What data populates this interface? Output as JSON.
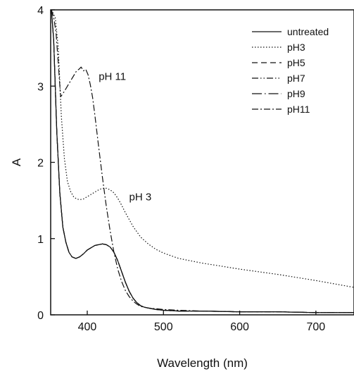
{
  "chart_data": {
    "type": "line",
    "xlabel": "Wavelength (nm)",
    "ylabel": "A",
    "xlim": [
      352,
      750
    ],
    "ylim": [
      0,
      4
    ],
    "x_ticks": [
      400,
      500,
      600,
      700
    ],
    "y_ticks": [
      0,
      1,
      2,
      3,
      4
    ],
    "grid": false,
    "legend_position": "top-right",
    "annotations": [
      {
        "text": "pH 11",
        "x": 415,
        "y": 3.08
      },
      {
        "text": "pH 3",
        "x": 455,
        "y": 1.5
      }
    ],
    "series": [
      {
        "name": "untreated",
        "dash": "",
        "x": [
          353,
          356,
          360,
          364,
          368,
          372,
          376,
          380,
          385,
          390,
          395,
          400,
          405,
          410,
          415,
          420,
          425,
          430,
          435,
          440,
          445,
          450,
          455,
          460,
          465,
          470,
          475,
          480,
          490,
          500,
          520,
          550,
          600,
          650,
          700,
          750
        ],
        "y": [
          4.0,
          3.6,
          2.4,
          1.6,
          1.15,
          0.95,
          0.82,
          0.76,
          0.74,
          0.76,
          0.8,
          0.85,
          0.88,
          0.91,
          0.92,
          0.93,
          0.92,
          0.89,
          0.82,
          0.71,
          0.57,
          0.43,
          0.31,
          0.22,
          0.16,
          0.12,
          0.1,
          0.09,
          0.07,
          0.06,
          0.05,
          0.05,
          0.04,
          0.04,
          0.03,
          0.03
        ]
      },
      {
        "name": "pH3",
        "dash": "1.5 2.5",
        "x": [
          353,
          358,
          362,
          366,
          370,
          374,
          378,
          382,
          386,
          390,
          395,
          400,
          405,
          410,
          415,
          420,
          425,
          430,
          435,
          440,
          445,
          450,
          460,
          470,
          480,
          490,
          500,
          520,
          550,
          600,
          650,
          700,
          750
        ],
        "y": [
          4.0,
          3.9,
          3.5,
          2.6,
          2.05,
          1.75,
          1.62,
          1.55,
          1.52,
          1.51,
          1.52,
          1.55,
          1.58,
          1.61,
          1.64,
          1.66,
          1.66,
          1.64,
          1.6,
          1.53,
          1.44,
          1.34,
          1.16,
          1.02,
          0.93,
          0.86,
          0.81,
          0.74,
          0.68,
          0.6,
          0.53,
          0.45,
          0.36
        ]
      },
      {
        "name": "pH5",
        "dash": "8 5",
        "x": [
          353,
          356,
          360,
          364,
          368,
          372,
          376,
          380,
          385,
          390,
          395,
          400,
          405,
          410,
          415,
          420,
          425,
          430,
          435,
          440,
          445,
          450,
          455,
          460,
          465,
          470,
          475,
          480,
          490,
          500,
          520,
          550,
          600,
          650,
          700,
          750
        ],
        "y": [
          4.0,
          3.6,
          2.4,
          1.6,
          1.15,
          0.95,
          0.82,
          0.76,
          0.74,
          0.76,
          0.8,
          0.85,
          0.88,
          0.91,
          0.92,
          0.93,
          0.92,
          0.89,
          0.82,
          0.71,
          0.57,
          0.43,
          0.31,
          0.22,
          0.16,
          0.12,
          0.1,
          0.09,
          0.07,
          0.06,
          0.05,
          0.05,
          0.04,
          0.04,
          0.03,
          0.03
        ]
      },
      {
        "name": "pH7",
        "dash": "9 3 1.5 3 1.5 3",
        "x": [
          353,
          356,
          360,
          364,
          368,
          372,
          376,
          380,
          385,
          390,
          395,
          400,
          405,
          410,
          415,
          420,
          425,
          430,
          435,
          440,
          445,
          450,
          455,
          460,
          465,
          470,
          475,
          480,
          490,
          500,
          520,
          550,
          600,
          650,
          700,
          750
        ],
        "y": [
          4.0,
          3.6,
          2.4,
          1.6,
          1.15,
          0.95,
          0.82,
          0.76,
          0.74,
          0.76,
          0.8,
          0.85,
          0.88,
          0.91,
          0.92,
          0.93,
          0.92,
          0.89,
          0.82,
          0.71,
          0.57,
          0.43,
          0.31,
          0.22,
          0.16,
          0.12,
          0.1,
          0.09,
          0.07,
          0.06,
          0.05,
          0.05,
          0.04,
          0.04,
          0.03,
          0.03
        ]
      },
      {
        "name": "pH9",
        "dash": "14 4 1.5 4",
        "x": [
          353,
          356,
          360,
          364,
          368,
          372,
          376,
          380,
          385,
          390,
          395,
          400,
          405,
          410,
          415,
          420,
          425,
          430,
          435,
          440,
          445,
          450,
          455,
          460,
          465,
          470,
          475,
          480,
          490,
          500,
          520,
          550,
          600,
          650,
          700,
          750
        ],
        "y": [
          4.0,
          3.6,
          2.4,
          1.6,
          1.15,
          0.95,
          0.82,
          0.76,
          0.74,
          0.76,
          0.8,
          0.85,
          0.88,
          0.91,
          0.92,
          0.93,
          0.92,
          0.89,
          0.82,
          0.71,
          0.57,
          0.43,
          0.31,
          0.22,
          0.16,
          0.12,
          0.1,
          0.09,
          0.07,
          0.06,
          0.05,
          0.05,
          0.04,
          0.04,
          0.03,
          0.03
        ]
      },
      {
        "name": "pH11",
        "dash": "9 3 2 3",
        "x": [
          353,
          356,
          359,
          362,
          365,
          368,
          371,
          374,
          377,
          380,
          383,
          386,
          389,
          392,
          395,
          398,
          401,
          404,
          407,
          410,
          415,
          420,
          425,
          430,
          435,
          440,
          445,
          450,
          455,
          460,
          465,
          470,
          480,
          490,
          500,
          520,
          550,
          600,
          650,
          700,
          750
        ],
        "y": [
          4.0,
          3.9,
          3.7,
          3.3,
          2.86,
          2.9,
          2.95,
          3.0,
          3.05,
          3.1,
          3.15,
          3.2,
          3.22,
          3.25,
          3.2,
          3.22,
          3.15,
          3.02,
          2.85,
          2.62,
          2.2,
          1.8,
          1.42,
          1.1,
          0.82,
          0.6,
          0.44,
          0.32,
          0.24,
          0.18,
          0.14,
          0.11,
          0.09,
          0.08,
          0.07,
          0.06,
          0.05,
          0.04,
          0.04,
          0.03,
          0.03
        ]
      }
    ]
  }
}
